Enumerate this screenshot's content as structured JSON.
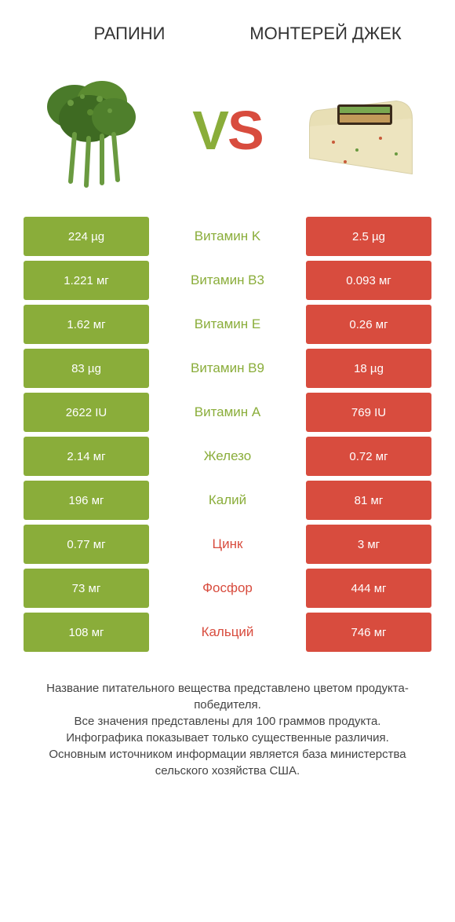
{
  "header": {
    "left_title": "РАПИНИ",
    "right_title": "МОНТЕРЕЙ ДЖЕК"
  },
  "vs": {
    "v": "V",
    "s": "S"
  },
  "colors": {
    "green": "#8aad3a",
    "red": "#d84c3e",
    "text": "#333333",
    "bg": "#ffffff"
  },
  "comparison": {
    "type": "table",
    "rows": [
      {
        "left": "224 µg",
        "label": "Витамин K",
        "winner": "green",
        "right": "2.5 µg"
      },
      {
        "left": "1.221 мг",
        "label": "Витамин B3",
        "winner": "green",
        "right": "0.093 мг"
      },
      {
        "left": "1.62 мг",
        "label": "Витамин E",
        "winner": "green",
        "right": "0.26 мг"
      },
      {
        "left": "83 µg",
        "label": "Витамин B9",
        "winner": "green",
        "right": "18 µg"
      },
      {
        "left": "2622 IU",
        "label": "Витамин A",
        "winner": "green",
        "right": "769 IU"
      },
      {
        "left": "2.14 мг",
        "label": "Железо",
        "winner": "green",
        "right": "0.72 мг"
      },
      {
        "left": "196 мг",
        "label": "Калий",
        "winner": "green",
        "right": "81 мг"
      },
      {
        "left": "0.77 мг",
        "label": "Цинк",
        "winner": "red",
        "right": "3 мг"
      },
      {
        "left": "73 мг",
        "label": "Фосфор",
        "winner": "red",
        "right": "444 мг"
      },
      {
        "left": "108 мг",
        "label": "Кальций",
        "winner": "red",
        "right": "746 мг"
      }
    ]
  },
  "footnote": {
    "line1": "Название питательного вещества представлено цветом продукта-победителя.",
    "line2": "Все значения представлены для 100 граммов продукта.",
    "line3": "Инфографика показывает только существенные различия.",
    "line4": "Основным источником информации является база министерства сельского хозяйства США."
  }
}
